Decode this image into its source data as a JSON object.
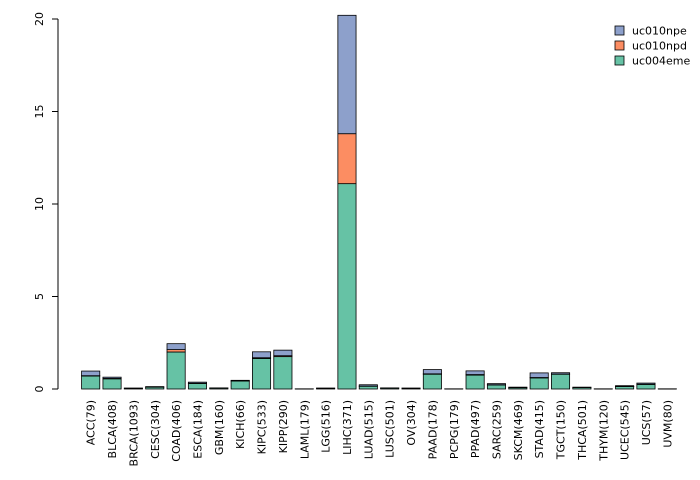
{
  "chart_data": {
    "type": "bar",
    "stacked": true,
    "title": "",
    "xlabel": "",
    "ylabel": "",
    "ylim": [
      0,
      20
    ],
    "yticks": [
      0,
      5,
      10,
      15,
      20
    ],
    "grid": false,
    "legend_position": "top-right",
    "categories": [
      "ACC(79)",
      "BLCA(408)",
      "BRCA(1093)",
      "CESC(304)",
      "COAD(406)",
      "ESCA(184)",
      "GBM(160)",
      "KICH(66)",
      "KIPC(533)",
      "KIPP(290)",
      "LAML(179)",
      "LGG(516)",
      "LIHC(371)",
      "LUAD(515)",
      "LUSC(501)",
      "OV(304)",
      "PAAD(178)",
      "PCPG(179)",
      "PPAD(497)",
      "SARC(259)",
      "SKCM(469)",
      "STAD(415)",
      "TGCT(150)",
      "THCA(501)",
      "THYM(120)",
      "UCEC(545)",
      "UCS(57)",
      "UVM(80)"
    ],
    "series": [
      {
        "name": "uc004eme",
        "color": "#66c2a5",
        "values": [
          0.7,
          0.55,
          0.04,
          0.1,
          2.0,
          0.3,
          0.05,
          0.43,
          1.65,
          1.75,
          0.01,
          0.04,
          11.1,
          0.15,
          0.05,
          0.04,
          0.8,
          0.01,
          0.75,
          0.22,
          0.07,
          0.6,
          0.8,
          0.08,
          0.01,
          0.13,
          0.25,
          0.01
        ]
      },
      {
        "name": "uc010npd",
        "color": "#fc8d62",
        "values": [
          0.02,
          0.02,
          0.0,
          0.0,
          0.13,
          0.01,
          0.0,
          0.01,
          0.04,
          0.05,
          0.0,
          0.0,
          2.7,
          0.01,
          0.0,
          0.0,
          0.02,
          0.0,
          0.03,
          0.01,
          0.0,
          0.02,
          0.01,
          0.0,
          0.0,
          0.01,
          0.01,
          0.0
        ]
      },
      {
        "name": "uc010npe",
        "color": "#8da0cb",
        "values": [
          0.25,
          0.07,
          0.01,
          0.03,
          0.32,
          0.06,
          0.01,
          0.03,
          0.32,
          0.3,
          0.0,
          0.01,
          6.4,
          0.07,
          0.01,
          0.01,
          0.23,
          0.0,
          0.2,
          0.06,
          0.03,
          0.25,
          0.07,
          0.02,
          0.0,
          0.04,
          0.06,
          0.0
        ]
      }
    ],
    "legend_order": [
      "uc010npe",
      "uc010npd",
      "uc004eme"
    ]
  }
}
